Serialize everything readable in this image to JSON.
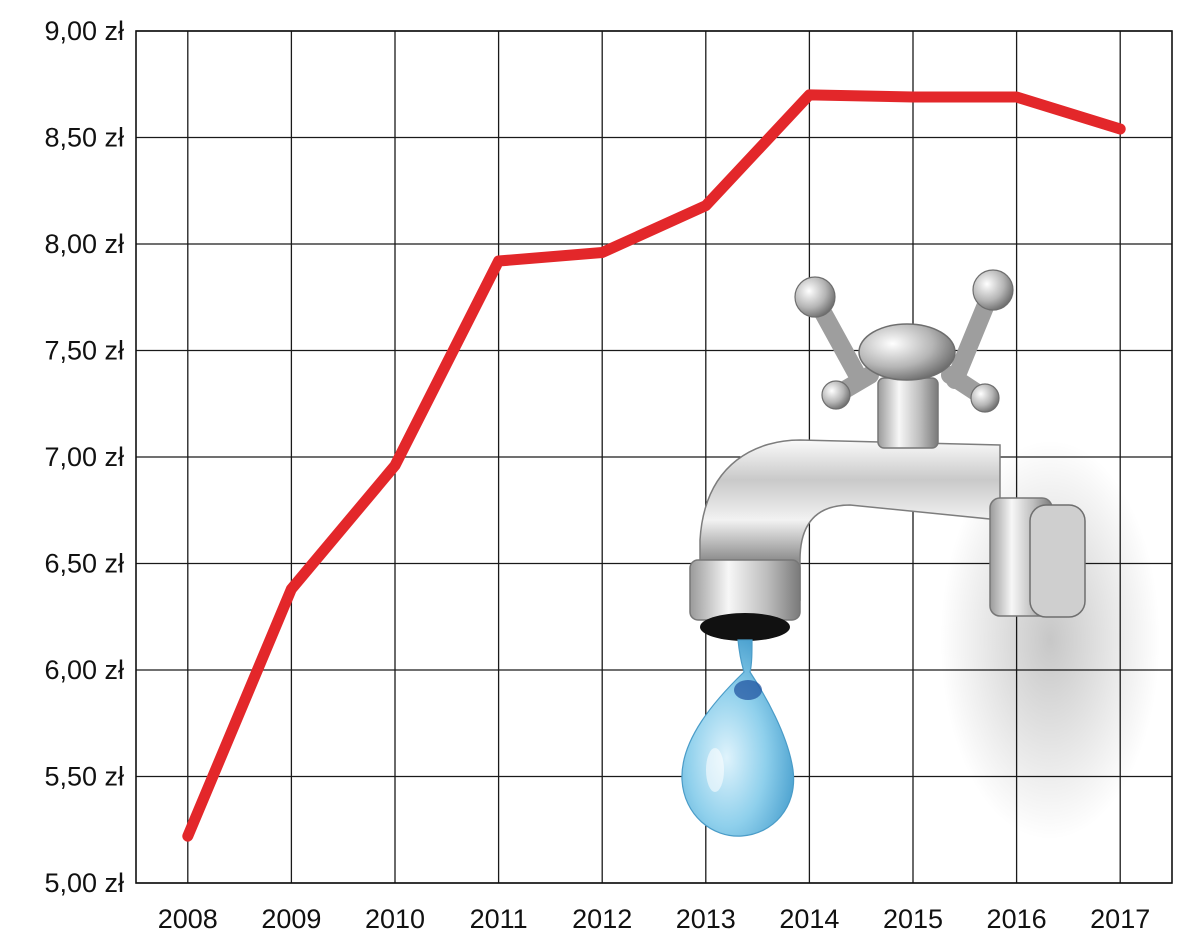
{
  "chart_data": {
    "type": "line",
    "title": "",
    "xlabel": "",
    "ylabel": "",
    "categories": [
      "2008",
      "2009",
      "2010",
      "2011",
      "2012",
      "2013",
      "2014",
      "2015",
      "2016",
      "2017"
    ],
    "series": [
      {
        "values": [
          5.22,
          6.38,
          6.96,
          7.92,
          7.96,
          8.18,
          8.7,
          8.69,
          8.69,
          8.54
        ]
      }
    ],
    "y_ticks": [
      {
        "value": 5.0,
        "label": "5,00 zł"
      },
      {
        "value": 5.5,
        "label": "5,50 zł"
      },
      {
        "value": 6.0,
        "label": "6,00 zł"
      },
      {
        "value": 6.5,
        "label": "6,50 zł"
      },
      {
        "value": 7.0,
        "label": "7,00 zł"
      },
      {
        "value": 7.5,
        "label": "7,50 zł"
      },
      {
        "value": 8.0,
        "label": "8,00 zł"
      },
      {
        "value": 8.5,
        "label": "8,50 zł"
      },
      {
        "value": 9.0,
        "label": "9,00 zł"
      }
    ],
    "ylim": [
      5.0,
      9.0
    ],
    "grid": true,
    "legend": "none",
    "colors": {
      "line": "#e3272a",
      "grid": "#1a1a1a",
      "text": "#111111"
    },
    "decoration": {
      "icon": "water-tap-icon"
    }
  }
}
